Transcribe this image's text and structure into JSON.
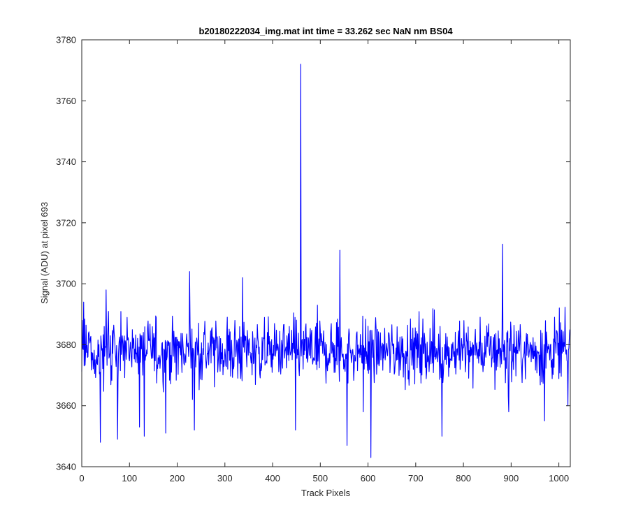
{
  "chart_data": {
    "type": "line",
    "title": "b20180222034_img.mat int time = 33.262 sec  NaN nm BS04",
    "xlabel": "Track Pixels",
    "ylabel": "Signal (ADU) at pixel 693",
    "xlim": [
      0,
      1024
    ],
    "ylim": [
      3640,
      3780
    ],
    "xticks": [
      0,
      100,
      200,
      300,
      400,
      500,
      600,
      700,
      800,
      900,
      1000
    ],
    "yticks": [
      3640,
      3660,
      3680,
      3700,
      3720,
      3740,
      3760,
      3780
    ],
    "grid": false,
    "line_color": "#0000ff",
    "n_points": 1024,
    "baseline": 3678,
    "noise_range": [
      3660,
      3700
    ],
    "notable_points": [
      {
        "x": 1,
        "y": 3688
      },
      {
        "x": 4,
        "y": 3694
      },
      {
        "x": 39,
        "y": 3648
      },
      {
        "x": 51,
        "y": 3698
      },
      {
        "x": 75,
        "y": 3649
      },
      {
        "x": 121,
        "y": 3653
      },
      {
        "x": 131,
        "y": 3650
      },
      {
        "x": 176,
        "y": 3651
      },
      {
        "x": 226,
        "y": 3704
      },
      {
        "x": 236,
        "y": 3652
      },
      {
        "x": 337,
        "y": 3702
      },
      {
        "x": 448,
        "y": 3652
      },
      {
        "x": 459,
        "y": 3772
      },
      {
        "x": 541,
        "y": 3711
      },
      {
        "x": 556,
        "y": 3647
      },
      {
        "x": 590,
        "y": 3658
      },
      {
        "x": 606,
        "y": 3643
      },
      {
        "x": 755,
        "y": 3650
      },
      {
        "x": 882,
        "y": 3713
      },
      {
        "x": 895,
        "y": 3658
      },
      {
        "x": 970,
        "y": 3655
      },
      {
        "x": 1019,
        "y": 3660
      },
      {
        "x": 1023,
        "y": 3685
      }
    ]
  }
}
